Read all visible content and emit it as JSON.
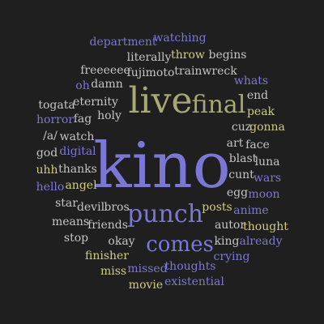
{
  "colors": {
    "background": "#1f1f1f",
    "purple": "#7b77d4",
    "gray": "#c4c4c4",
    "olive": "#a8a877",
    "yellow": "#cfcc80"
  },
  "words": [
    {
      "text": "kino",
      "color": "purple"
    },
    {
      "text": "live",
      "color": "olive"
    },
    {
      "text": "final",
      "color": "olive"
    },
    {
      "text": "punch",
      "color": "purple"
    },
    {
      "text": "comes",
      "color": "purple"
    },
    {
      "text": "department",
      "color": "purple"
    },
    {
      "text": "watching",
      "color": "purple"
    },
    {
      "text": "literally",
      "color": "gray"
    },
    {
      "text": "throw",
      "color": "yellow"
    },
    {
      "text": "begins",
      "color": "gray"
    },
    {
      "text": "freeeeee",
      "color": "gray"
    },
    {
      "text": "fujimoto",
      "color": "gray"
    },
    {
      "text": "trainwreck",
      "color": "gray"
    },
    {
      "text": "oh",
      "color": "purple"
    },
    {
      "text": "damn",
      "color": "gray"
    },
    {
      "text": "whats",
      "color": "purple"
    },
    {
      "text": "end",
      "color": "gray"
    },
    {
      "text": "eternity",
      "color": "gray"
    },
    {
      "text": "togata",
      "color": "gray"
    },
    {
      "text": "peak",
      "color": "yellow"
    },
    {
      "text": "horror",
      "color": "purple"
    },
    {
      "text": "fag",
      "color": "gray"
    },
    {
      "text": "holy",
      "color": "gray"
    },
    {
      "text": "cuz",
      "color": "gray"
    },
    {
      "text": "gonna",
      "color": "yellow"
    },
    {
      "text": "/a/",
      "color": "gray"
    },
    {
      "text": "watch",
      "color": "gray"
    },
    {
      "text": "art",
      "color": "gray"
    },
    {
      "text": "face",
      "color": "gray"
    },
    {
      "text": "god",
      "color": "gray"
    },
    {
      "text": "digital",
      "color": "purple"
    },
    {
      "text": "luna",
      "color": "gray"
    },
    {
      "text": "blast",
      "color": "gray"
    },
    {
      "text": "uhh",
      "color": "yellow"
    },
    {
      "text": "thanks",
      "color": "gray"
    },
    {
      "text": "cunt",
      "color": "gray"
    },
    {
      "text": "wars",
      "color": "purple"
    },
    {
      "text": "hello",
      "color": "purple"
    },
    {
      "text": "angel",
      "color": "yellow"
    },
    {
      "text": "egg",
      "color": "gray"
    },
    {
      "text": "moon",
      "color": "purple"
    },
    {
      "text": "star",
      "color": "gray"
    },
    {
      "text": "devil",
      "color": "gray"
    },
    {
      "text": "bros",
      "color": "gray"
    },
    {
      "text": "posts",
      "color": "yellow"
    },
    {
      "text": "anime",
      "color": "purple"
    },
    {
      "text": "means",
      "color": "gray"
    },
    {
      "text": "friends",
      "color": "gray"
    },
    {
      "text": "autor",
      "color": "gray"
    },
    {
      "text": "thought",
      "color": "yellow"
    },
    {
      "text": "stop",
      "color": "gray"
    },
    {
      "text": "okay",
      "color": "gray"
    },
    {
      "text": "king",
      "color": "gray"
    },
    {
      "text": "already",
      "color": "purple"
    },
    {
      "text": "finisher",
      "color": "yellow"
    },
    {
      "text": "crying",
      "color": "purple"
    },
    {
      "text": "miss",
      "color": "yellow"
    },
    {
      "text": "missed",
      "color": "purple"
    },
    {
      "text": "thoughts",
      "color": "purple"
    },
    {
      "text": "movie",
      "color": "yellow"
    },
    {
      "text": "existential",
      "color": "purple"
    }
  ]
}
